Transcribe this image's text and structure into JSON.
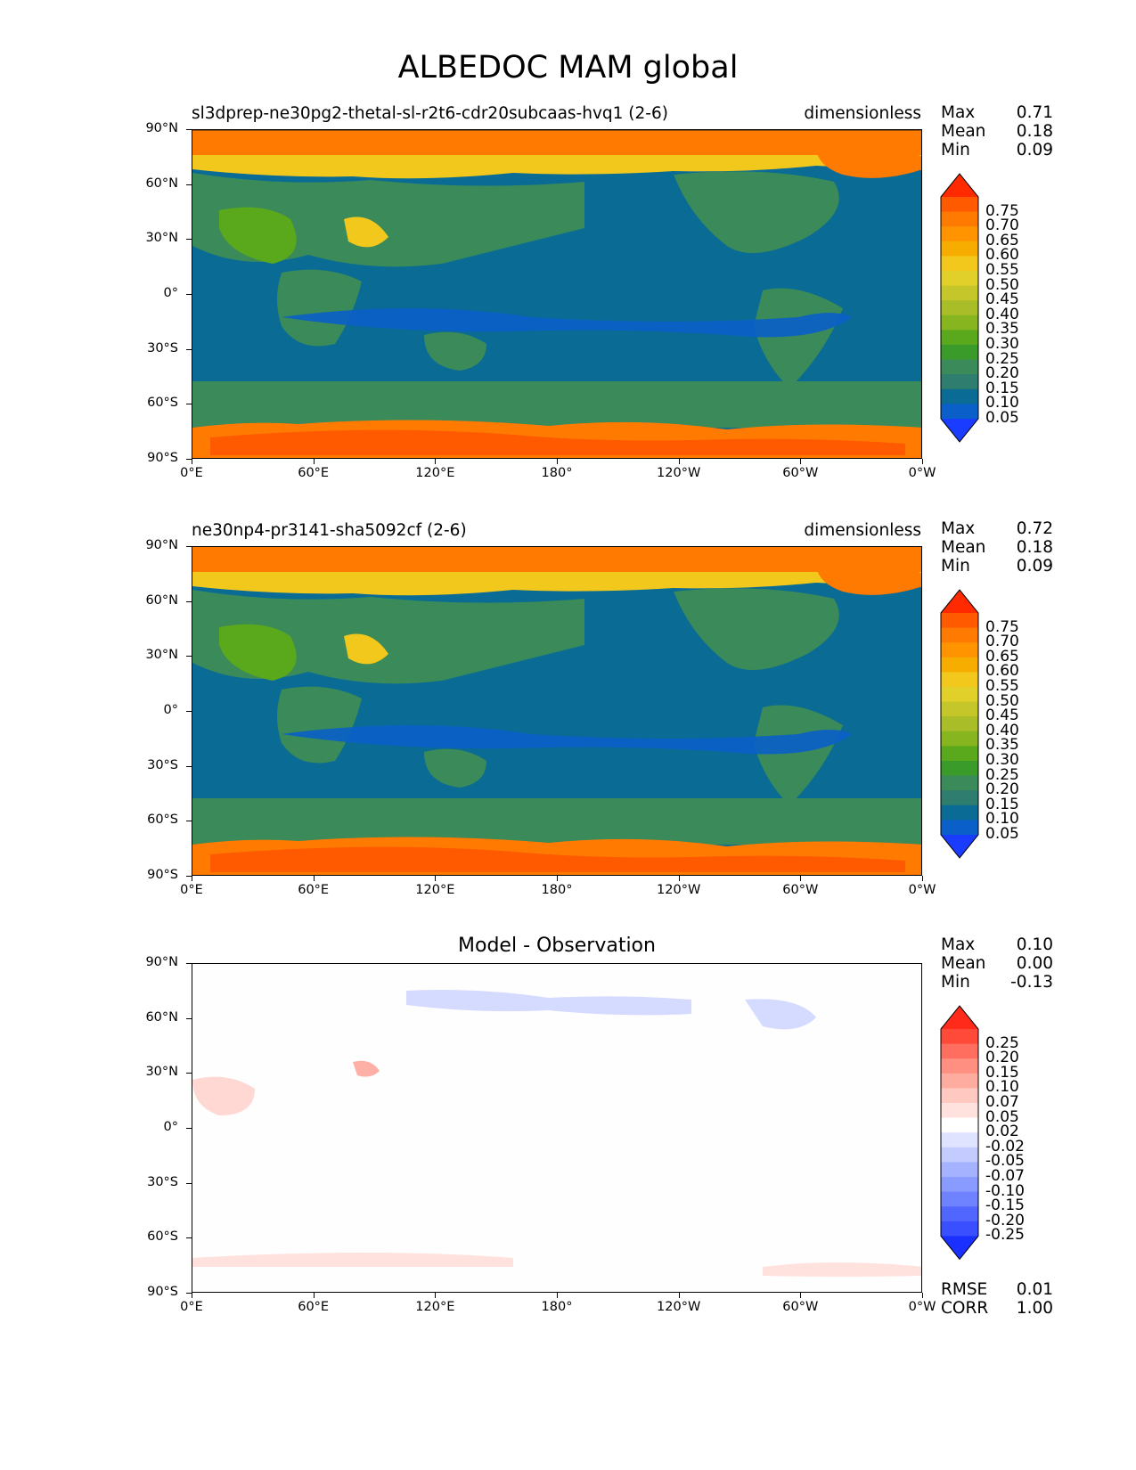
{
  "title": "ALBEDOC MAM global",
  "lat_labels": [
    "90°N",
    "60°N",
    "30°N",
    "0°",
    "30°S",
    "60°S",
    "90°S"
  ],
  "lon_labels": [
    "0°E",
    "60°E",
    "120°E",
    "180°",
    "120°W",
    "60°W",
    "0°W"
  ],
  "stats_labels": {
    "max": "Max",
    "mean": "Mean",
    "min": "Min",
    "rmse": "RMSE",
    "corr": "CORR"
  },
  "panels": [
    {
      "name": "test",
      "title_left": "sl3dprep-ne30pg2-thetal-sl-r2t6-cdr20subcaas-hvq1 (2-6)",
      "units": "dimensionless",
      "max": "0.71",
      "mean": "0.18",
      "min": "0.09"
    },
    {
      "name": "reference",
      "title_left": "ne30np4-pr3141-sha5092cf (2-6)",
      "units": "dimensionless",
      "max": "0.72",
      "mean": "0.18",
      "min": "0.09"
    },
    {
      "name": "diff",
      "title_center": "Model - Observation",
      "max": "0.10",
      "mean": "0.00",
      "min": "-0.13",
      "rmse": "0.01",
      "corr": "1.00"
    }
  ],
  "colorbar_main": {
    "ticks": [
      "0.75",
      "0.70",
      "0.65",
      "0.60",
      "0.55",
      "0.50",
      "0.45",
      "0.40",
      "0.35",
      "0.30",
      "0.25",
      "0.20",
      "0.15",
      "0.10",
      "0.05"
    ],
    "colors": [
      "#ff2a00",
      "#ff5a00",
      "#ff7a00",
      "#ff9400",
      "#f7ad00",
      "#f2c81c",
      "#e1cf2a",
      "#c4c62a",
      "#a8bd27",
      "#86b51f",
      "#5aa81c",
      "#3a9a2a",
      "#3a8a5a",
      "#2e7d6e",
      "#0a6b94",
      "#0a5fc8",
      "#1a3cff"
    ]
  },
  "colorbar_diff": {
    "ticks": [
      "0.25",
      "0.20",
      "0.15",
      "0.10",
      "0.07",
      "0.05",
      "0.02",
      "-0.02",
      "-0.05",
      "-0.07",
      "-0.10",
      "-0.15",
      "-0.20",
      "-0.25"
    ],
    "colors": [
      "#ff2a1a",
      "#ff4a3a",
      "#ff6e5e",
      "#ff8f80",
      "#ffaca0",
      "#ffc8c0",
      "#ffe2dd",
      "#ffffff",
      "#dfe3ff",
      "#c3cbff",
      "#a5b2ff",
      "#8a9bff",
      "#6f82ff",
      "#5166ff",
      "#3a4fff",
      "#1a30ff"
    ]
  }
}
